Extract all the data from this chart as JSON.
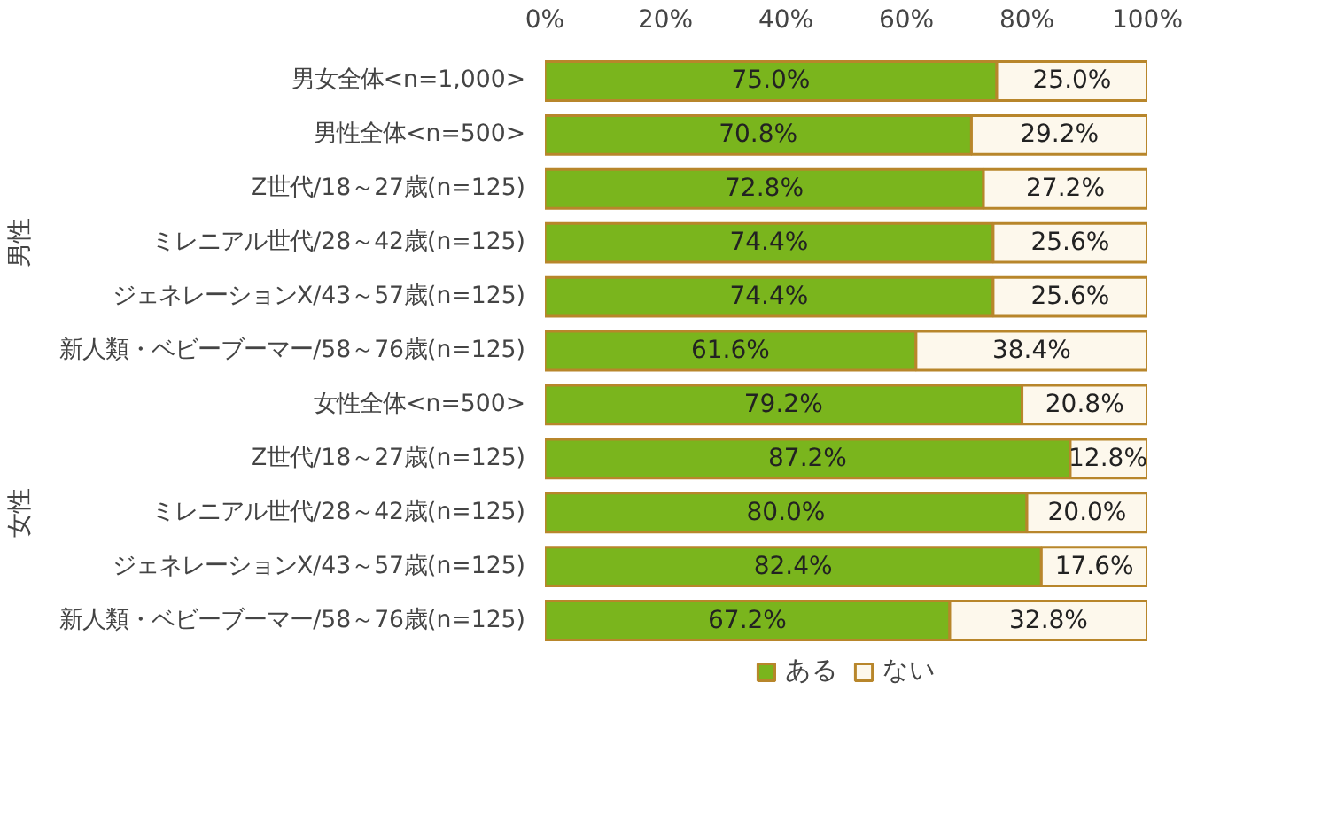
{
  "chart_data": {
    "type": "bar",
    "orientation": "horizontal",
    "stacked": true,
    "categories": [
      "男女全体<n=1,000>",
      "男性全体<n=500>",
      "Z世代/18～27歳(n=125)",
      "ミレニアル世代/28～42歳(n=125)",
      "ジェネレーションX/43～57歳(n=125)",
      "新人類・ベビーブーマー/58～76歳(n=125)",
      "女性全体<n=500>",
      "Z世代/18～27歳(n=125)",
      "ミレニアル世代/28～42歳(n=125)",
      "ジェネレーションX/43～57歳(n=125)",
      "新人類・ベビーブーマー/58～76歳(n=125)"
    ],
    "series": [
      {
        "name": "ある",
        "color": "#7ab51d",
        "values": [
          75.0,
          70.8,
          72.8,
          74.4,
          74.4,
          61.6,
          79.2,
          87.2,
          80.0,
          82.4,
          67.2
        ],
        "value_labels": [
          "75.0%",
          "70.8%",
          "72.8%",
          "74.4%",
          "74.4%",
          "61.6%",
          "79.2%",
          "87.2%",
          "80.0%",
          "82.4%",
          "67.2%"
        ]
      },
      {
        "name": "ない",
        "color": "#fdf8ec",
        "values": [
          25.0,
          29.2,
          27.2,
          25.6,
          25.6,
          38.4,
          20.8,
          12.8,
          20.0,
          17.6,
          32.8
        ],
        "value_labels": [
          "25.0%",
          "29.2%",
          "27.2%",
          "25.6%",
          "25.6%",
          "38.4%",
          "20.8%",
          "12.8%",
          "20.0%",
          "17.6%",
          "32.8%"
        ]
      }
    ],
    "xlim": [
      0,
      100
    ],
    "xticks": [
      {
        "value": 0,
        "label": "0%"
      },
      {
        "value": 20,
        "label": "20%"
      },
      {
        "value": 40,
        "label": "40%"
      },
      {
        "value": 60,
        "label": "60%"
      },
      {
        "value": 80,
        "label": "80%"
      },
      {
        "value": 100,
        "label": "100%"
      }
    ],
    "annotations": [
      "男性",
      "女性"
    ],
    "grid": false,
    "legend": "bottom"
  }
}
